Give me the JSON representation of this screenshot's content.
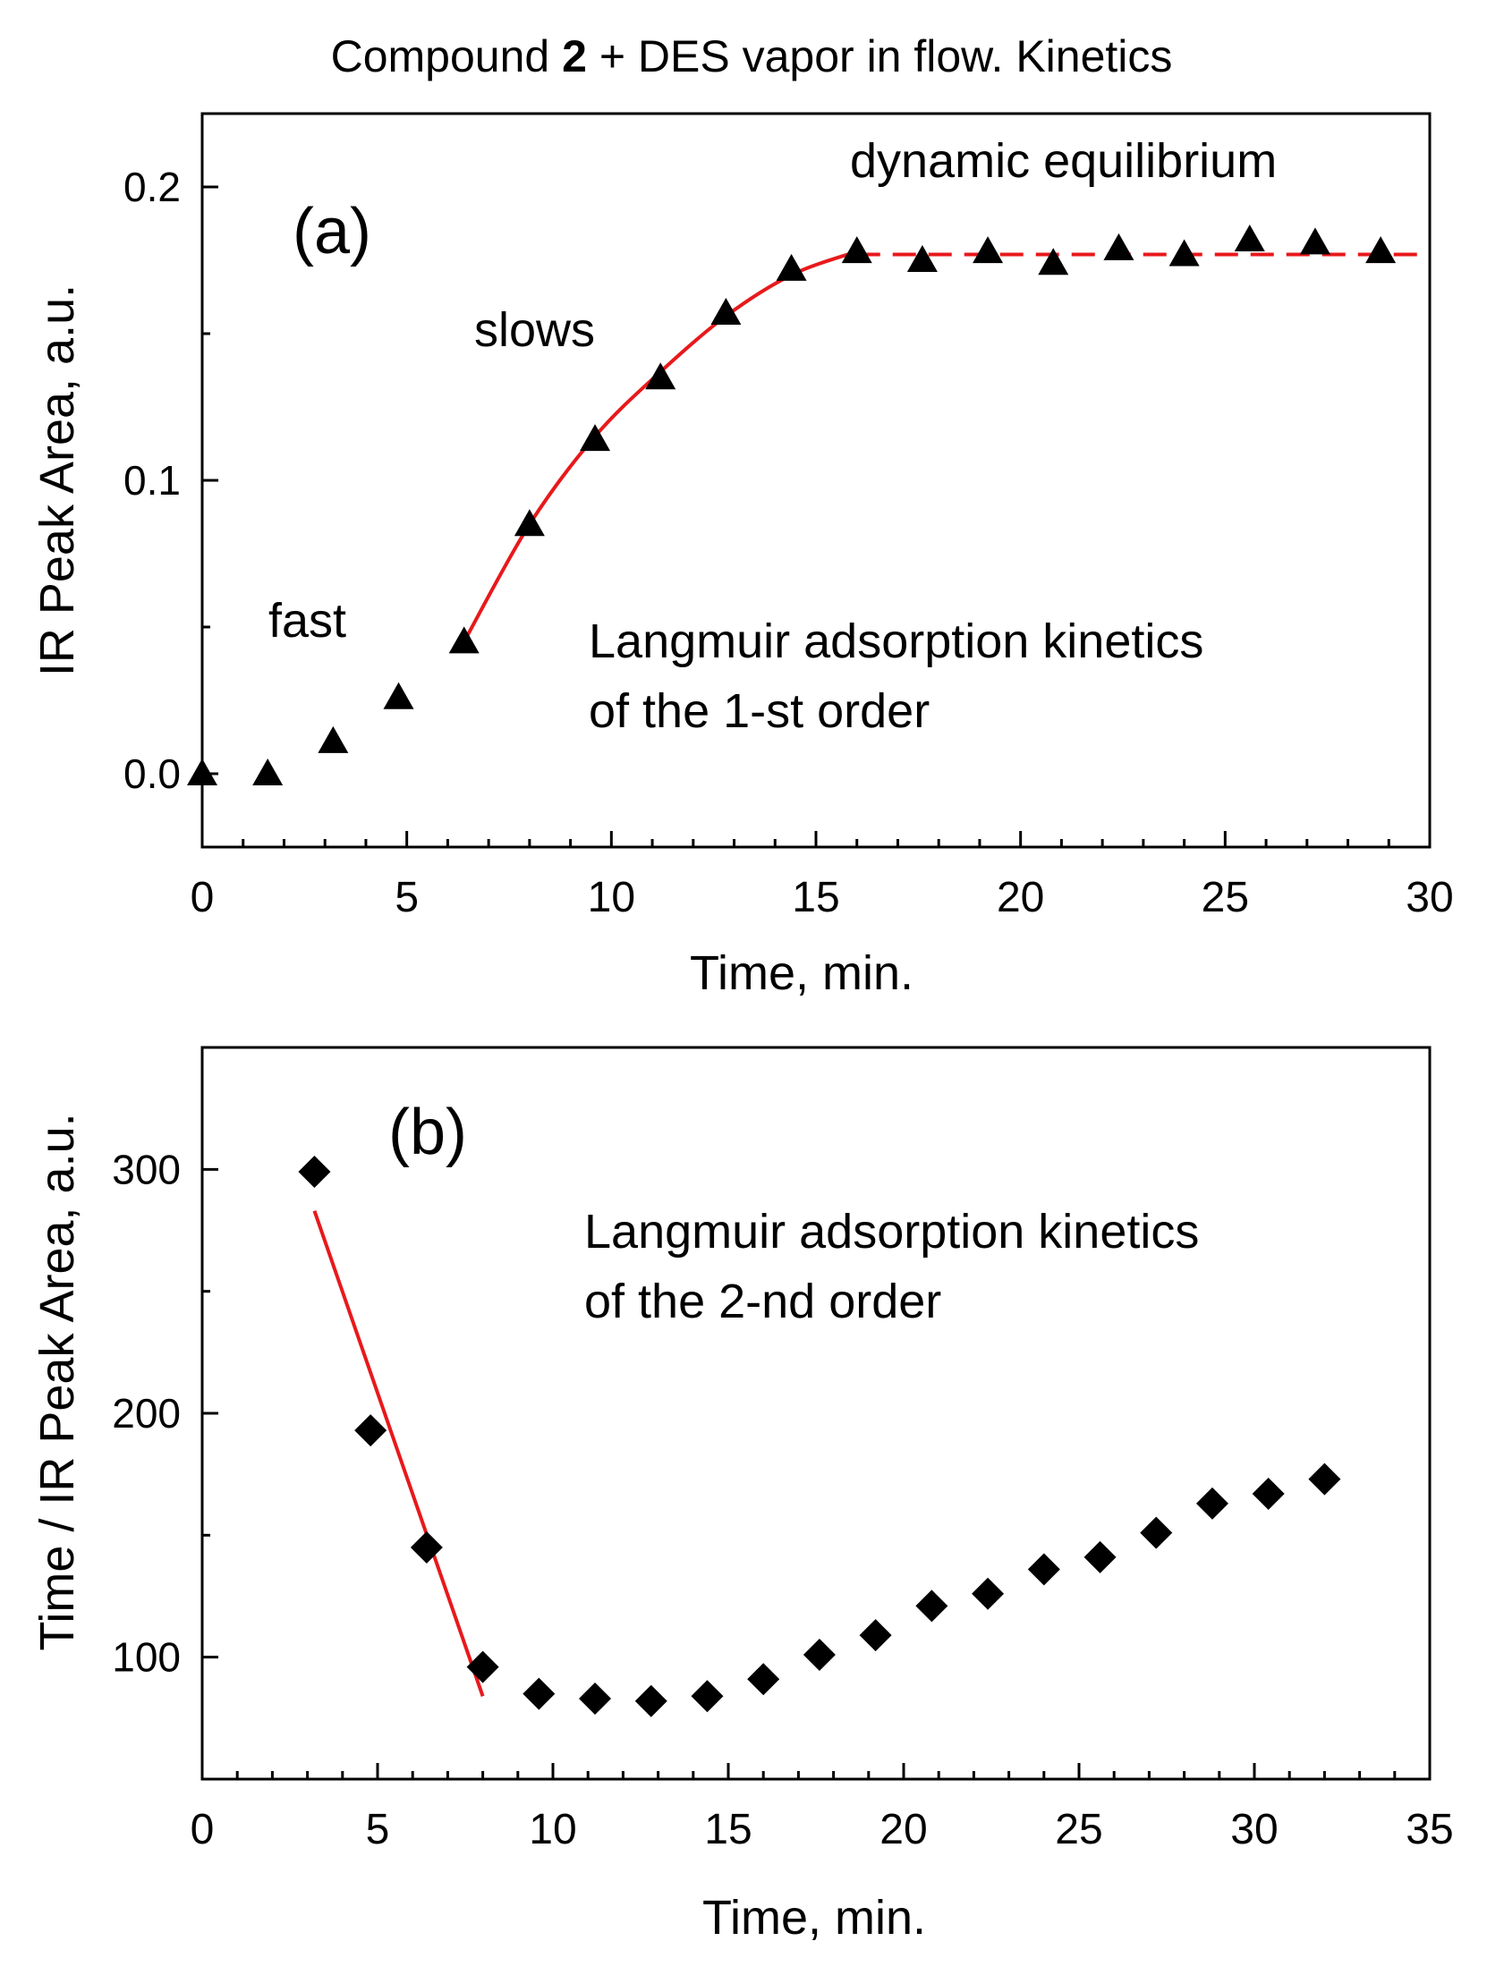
{
  "figure_title": {
    "prefix": "Compound ",
    "bold": "2",
    "suffix": " + DES vapor in flow. Kinetics"
  },
  "chart_data": [
    {
      "type": "scatter",
      "panel_label": "(a)",
      "xlabel": "Time, min.",
      "ylabel": "IR Peak Area, a.u.",
      "xlim": [
        0,
        30
      ],
      "ylim": [
        -0.025,
        0.225
      ],
      "xticks": [
        0,
        5,
        10,
        15,
        20,
        25,
        30
      ],
      "yticks": [
        0.0,
        0.1,
        0.2
      ],
      "ytick_labels": [
        "0.0",
        "0.1",
        "0.2"
      ],
      "series": [
        {
          "name": "IR peak area",
          "marker": "triangle",
          "color": "#000000",
          "x": [
            0,
            1.6,
            3.2,
            4.8,
            6.4,
            8.0,
            9.6,
            11.2,
            12.8,
            14.4,
            16.0,
            17.6,
            19.2,
            20.8,
            22.4,
            24.0,
            25.6,
            27.2,
            28.8
          ],
          "y": [
            0.0,
            0.0,
            0.011,
            0.026,
            0.045,
            0.085,
            0.114,
            0.135,
            0.157,
            0.172,
            0.178,
            0.175,
            0.178,
            0.174,
            0.179,
            0.177,
            0.182,
            0.181,
            0.178
          ]
        }
      ],
      "fit_curves": [
        {
          "name": "Langmuir 1-st order fit",
          "color": "#e8191b",
          "style": "solid",
          "x": [
            6.4,
            8.0,
            9.6,
            11.2,
            12.8,
            14.4,
            16.0
          ],
          "y": [
            0.045,
            0.085,
            0.115,
            0.137,
            0.156,
            0.17,
            0.178
          ]
        },
        {
          "name": "Equilibrium level",
          "color": "#e8191b",
          "style": "dashed",
          "x": [
            16.0,
            30.0
          ],
          "y": [
            0.177,
            0.177
          ]
        }
      ],
      "annotations": [
        "dynamic equilibrium",
        "slows",
        "fast",
        "Langmuir adsorption kinetics",
        "of the 1-st order"
      ]
    },
    {
      "type": "scatter",
      "panel_label": "(b)",
      "xlabel": "Time, min.",
      "ylabel": "Time / IR Peak Area, a.u.",
      "xlim": [
        0,
        35
      ],
      "ylim": [
        50,
        350
      ],
      "xticks": [
        0,
        5,
        10,
        15,
        20,
        25,
        30,
        35
      ],
      "yticks": [
        100,
        200,
        300
      ],
      "ytick_labels": [
        "100",
        "200",
        "300"
      ],
      "series": [
        {
          "name": "Time / IR peak area",
          "marker": "diamond",
          "color": "#000000",
          "x": [
            3.2,
            4.8,
            6.4,
            8.0,
            9.6,
            11.2,
            12.8,
            14.4,
            16.0,
            17.6,
            19.2,
            20.8,
            22.4,
            24.0,
            25.6,
            27.2,
            28.8,
            30.4,
            32.0
          ],
          "y": [
            299,
            193,
            145,
            96,
            85,
            83,
            82,
            84,
            91,
            101,
            109,
            121,
            126,
            136,
            141,
            151,
            163,
            167,
            173
          ]
        }
      ],
      "fit_curves": [
        {
          "name": "Langmuir 2-nd order fit",
          "color": "#e8191b",
          "style": "solid",
          "x": [
            3.2,
            8.0
          ],
          "y": [
            283,
            84
          ]
        }
      ],
      "annotations": [
        "Langmuir adsorption kinetics",
        "of the 2-nd order"
      ]
    }
  ]
}
